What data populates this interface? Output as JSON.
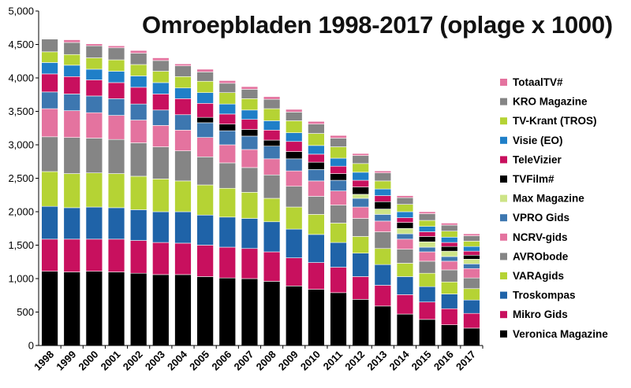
{
  "chart_data": {
    "type": "bar",
    "stacked": true,
    "title": "Omroepbladen 1998-2017 (oplage x 1000)",
    "xlabel": "",
    "ylabel": "",
    "ylim": [
      0,
      5000
    ],
    "yticks": [
      "0",
      "500",
      "1,000",
      "1,500",
      "2,000",
      "2,500",
      "3,000",
      "3,500",
      "4,000",
      "4,500",
      "5,000"
    ],
    "grid": false,
    "legend_position": "right",
    "categories": [
      "1998",
      "1999",
      "2000",
      "2001",
      "2002",
      "2003",
      "2004",
      "2005",
      "2006",
      "2007",
      "2008",
      "2009",
      "2010",
      "2011",
      "2012",
      "2013",
      "2014",
      "2015",
      "2016",
      "2017"
    ],
    "series": [
      {
        "name": "Veronica Magazine",
        "color": "#000000",
        "values": [
          1110,
          1100,
          1110,
          1100,
          1080,
          1060,
          1060,
          1030,
          1010,
          1000,
          960,
          890,
          840,
          790,
          690,
          590,
          470,
          390,
          310,
          260
        ]
      },
      {
        "name": "Mikro Gids",
        "color": "#c8105e",
        "values": [
          480,
          490,
          480,
          490,
          490,
          480,
          470,
          470,
          460,
          450,
          440,
          420,
          400,
          380,
          340,
          310,
          290,
          260,
          240,
          220
        ]
      },
      {
        "name": "Troskompas",
        "color": "#1f63a8",
        "values": [
          490,
          470,
          480,
          470,
          460,
          460,
          470,
          450,
          450,
          450,
          450,
          430,
          420,
          370,
          350,
          310,
          270,
          230,
          220,
          200
        ]
      },
      {
        "name": "VARAgids",
        "color": "#b5d334",
        "values": [
          520,
          510,
          510,
          510,
          500,
          490,
          460,
          450,
          430,
          390,
          350,
          330,
          300,
          290,
          250,
          240,
          200,
          200,
          180,
          170
        ]
      },
      {
        "name": "AVRObode",
        "color": "#858585",
        "values": [
          520,
          540,
          520,
          510,
          500,
          480,
          450,
          420,
          380,
          370,
          350,
          310,
          270,
          270,
          270,
          250,
          210,
          180,
          180,
          160
        ]
      },
      {
        "name": "NCRV-gids",
        "color": "#e4739f",
        "values": [
          420,
          400,
          380,
          360,
          340,
          320,
          310,
          290,
          270,
          270,
          240,
          230,
          230,
          210,
          170,
          160,
          150,
          140,
          130,
          140
        ]
      },
      {
        "name": "VPRO Gids",
        "color": "#3d77b0",
        "values": [
          250,
          250,
          250,
          250,
          240,
          230,
          230,
          220,
          210,
          200,
          190,
          180,
          170,
          160,
          130,
          100,
          80,
          70,
          70,
          70
        ]
      },
      {
        "name": "Max Magazine",
        "color": "#cde487",
        "values": [
          0,
          0,
          0,
          0,
          0,
          0,
          0,
          0,
          0,
          0,
          0,
          0,
          0,
          0,
          60,
          80,
          80,
          80,
          80,
          70
        ]
      },
      {
        "name": "TVFilm#",
        "color": "#000000",
        "values": [
          0,
          0,
          0,
          0,
          0,
          0,
          0,
          80,
          100,
          100,
          90,
          110,
          110,
          100,
          110,
          110,
          90,
          80,
          70,
          60
        ]
      },
      {
        "name": "TeleVizier",
        "color": "#c8105e",
        "values": [
          270,
          260,
          240,
          240,
          250,
          240,
          240,
          210,
          150,
          150,
          150,
          150,
          120,
          110,
          100,
          90,
          70,
          70,
          60,
          60
        ]
      },
      {
        "name": "Visie (EO)",
        "color": "#1f7fc8",
        "values": [
          170,
          170,
          160,
          170,
          170,
          170,
          160,
          160,
          150,
          140,
          140,
          130,
          130,
          120,
          120,
          100,
          90,
          80,
          80,
          70
        ]
      },
      {
        "name": "TV-Krant (TROS)",
        "color": "#b5d334",
        "values": [
          160,
          160,
          170,
          170,
          170,
          170,
          170,
          170,
          170,
          170,
          180,
          180,
          180,
          170,
          130,
          120,
          110,
          90,
          90,
          80
        ]
      },
      {
        "name": "KRO Magazine",
        "color": "#858585",
        "values": [
          190,
          180,
          180,
          180,
          170,
          160,
          160,
          140,
          140,
          140,
          140,
          130,
          140,
          130,
          120,
          120,
          100,
          100,
          90,
          80
        ]
      },
      {
        "name": "TotaalTV#",
        "color": "#e4739f",
        "values": [
          0,
          40,
          30,
          30,
          40,
          40,
          30,
          40,
          40,
          40,
          40,
          40,
          40,
          40,
          30,
          30,
          30,
          30,
          30,
          30
        ]
      }
    ]
  }
}
